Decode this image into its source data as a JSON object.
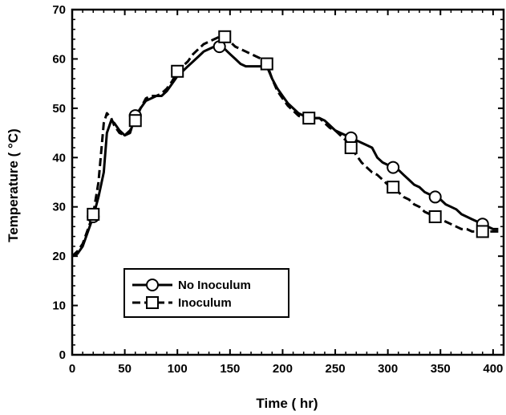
{
  "chart_data": {
    "type": "line",
    "xlabel": "Time ( hr)",
    "ylabel": "Temperature ( °C)",
    "xlim": [
      0,
      410
    ],
    "ylim": [
      0,
      70
    ],
    "xticks": [
      0,
      50,
      100,
      150,
      200,
      250,
      300,
      350,
      400
    ],
    "yticks": [
      0,
      10,
      20,
      30,
      40,
      50,
      60,
      70
    ],
    "grid": false,
    "legend_position": "lower-left",
    "series": [
      {
        "name": "No Inoculum",
        "marker": "circle",
        "line_style": "solid",
        "color": "#000000",
        "x": [
          0,
          5,
          10,
          15,
          20,
          25,
          30,
          33,
          37,
          40,
          45,
          50,
          55,
          60,
          65,
          70,
          75,
          80,
          85,
          90,
          95,
          100,
          105,
          110,
          115,
          120,
          125,
          130,
          135,
          140,
          145,
          150,
          155,
          160,
          165,
          170,
          175,
          180,
          185,
          190,
          195,
          200,
          205,
          210,
          215,
          220,
          225,
          230,
          235,
          240,
          245,
          250,
          255,
          260,
          265,
          270,
          275,
          280,
          285,
          290,
          295,
          300,
          305,
          310,
          315,
          320,
          325,
          330,
          335,
          340,
          345,
          350,
          355,
          360,
          365,
          370,
          375,
          380,
          385,
          390,
          395,
          400,
          405
        ],
        "y": [
          20,
          20.5,
          22,
          25,
          28,
          32,
          37,
          45,
          47.5,
          47,
          45.5,
          44.5,
          45,
          48.5,
          50,
          51.5,
          52,
          52.5,
          52.5,
          53.5,
          55,
          56.5,
          57.5,
          58.5,
          59.5,
          60.5,
          61.5,
          62,
          62.5,
          62.5,
          62,
          61,
          60,
          59,
          58.5,
          58.5,
          58.5,
          58.5,
          58.5,
          56,
          54,
          52.5,
          51,
          50,
          49,
          48.5,
          48,
          48,
          48,
          47.5,
          46.5,
          45.5,
          45,
          44.5,
          44,
          43.5,
          43,
          42.5,
          42,
          40,
          39,
          38.5,
          38,
          37.5,
          36.5,
          35.5,
          34.5,
          34,
          33,
          32.5,
          32,
          31.5,
          30.5,
          30,
          29.5,
          28.5,
          28,
          27.5,
          27,
          26.5,
          26,
          25.5,
          25.5
        ]
      },
      {
        "name": "Inoculum",
        "marker": "square",
        "line_style": "dashed",
        "color": "#000000",
        "x": [
          0,
          5,
          10,
          15,
          20,
          25,
          30,
          33,
          37,
          40,
          45,
          50,
          55,
          60,
          65,
          70,
          75,
          80,
          85,
          90,
          95,
          100,
          105,
          110,
          115,
          120,
          125,
          130,
          135,
          140,
          145,
          150,
          155,
          160,
          165,
          170,
          175,
          180,
          185,
          190,
          195,
          200,
          205,
          210,
          215,
          220,
          225,
          230,
          235,
          240,
          245,
          250,
          255,
          260,
          265,
          270,
          275,
          280,
          285,
          290,
          295,
          300,
          305,
          310,
          315,
          320,
          325,
          330,
          335,
          340,
          345,
          350,
          355,
          360,
          365,
          370,
          375,
          380,
          385,
          390,
          395,
          400,
          405
        ],
        "y": [
          20,
          21,
          22.5,
          25.5,
          28.5,
          35,
          47,
          49,
          48,
          46.5,
          45,
          44.5,
          45.5,
          47.5,
          50,
          52,
          52.5,
          52.5,
          53,
          54,
          55.5,
          57.5,
          58.5,
          59.5,
          61,
          62,
          63,
          63.5,
          64,
          64.5,
          64.5,
          63.5,
          62.5,
          62,
          61.5,
          61,
          60.5,
          60,
          59,
          56,
          53.5,
          52,
          50.5,
          49.5,
          48.5,
          48,
          48,
          48,
          48,
          47,
          46,
          45.5,
          44.5,
          43.5,
          42,
          40.5,
          39,
          38,
          37,
          36.5,
          35.5,
          34.5,
          34,
          33,
          32,
          31.5,
          30.5,
          30,
          29,
          28.5,
          28,
          27.5,
          27,
          26.5,
          26,
          25.5,
          25.5,
          25,
          25,
          25,
          25,
          25,
          25
        ]
      }
    ]
  }
}
